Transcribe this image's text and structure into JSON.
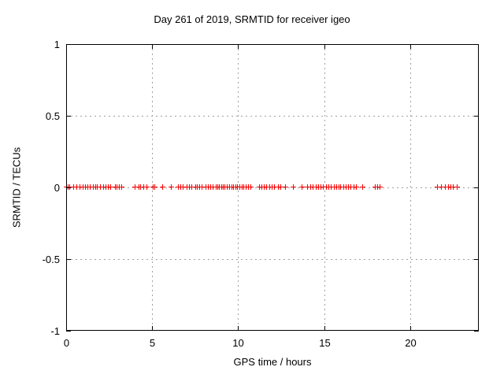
{
  "chart_data": {
    "type": "scatter",
    "title": "Day 261 of 2019, SRMTID for receiver igeo",
    "xlabel": "GPS time / hours",
    "ylabel": "SRMTID / TECUs",
    "xlim": [
      0,
      24
    ],
    "ylim": [
      -1,
      1
    ],
    "xticks": [
      0,
      5,
      10,
      15,
      20
    ],
    "yticks": [
      1,
      0.5,
      0,
      -0.5,
      -1
    ],
    "grid": true,
    "grid_color": "#a0a0a0",
    "border_color": "#000000",
    "legend": "none",
    "series": [
      {
        "name": "SRMTID",
        "marker": "plus",
        "color": "#ff0000",
        "y_value": 0,
        "x": [
          0.02,
          0.1,
          0.18,
          0.42,
          0.6,
          0.78,
          0.95,
          1.08,
          1.25,
          1.38,
          1.55,
          1.68,
          1.8,
          1.95,
          2.15,
          2.28,
          2.42,
          2.58,
          2.85,
          2.95,
          3.07,
          3.2,
          4.0,
          4.2,
          4.32,
          4.5,
          4.65,
          5.05,
          5.15,
          5.6,
          6.1,
          6.5,
          6.65,
          6.8,
          7.0,
          7.15,
          7.3,
          7.5,
          7.62,
          7.75,
          7.9,
          8.1,
          8.25,
          8.4,
          8.52,
          8.7,
          8.8,
          8.9,
          9.0,
          9.1,
          9.2,
          9.35,
          9.5,
          9.6,
          9.72,
          9.85,
          9.95,
          10.08,
          10.2,
          10.32,
          10.45,
          10.58,
          10.72,
          11.2,
          11.35,
          11.5,
          11.65,
          11.8,
          11.95,
          12.1,
          12.3,
          12.45,
          12.75,
          13.2,
          13.7,
          14.0,
          14.2,
          14.35,
          14.5,
          14.65,
          14.8,
          14.95,
          15.1,
          15.25,
          15.4,
          15.55,
          15.7,
          15.85,
          15.95,
          16.1,
          16.25,
          16.4,
          16.55,
          16.7,
          16.85,
          17.2,
          17.95,
          18.1,
          18.25,
          21.55,
          21.8,
          22.05,
          22.2,
          22.35,
          22.5,
          22.7
        ]
      }
    ]
  }
}
